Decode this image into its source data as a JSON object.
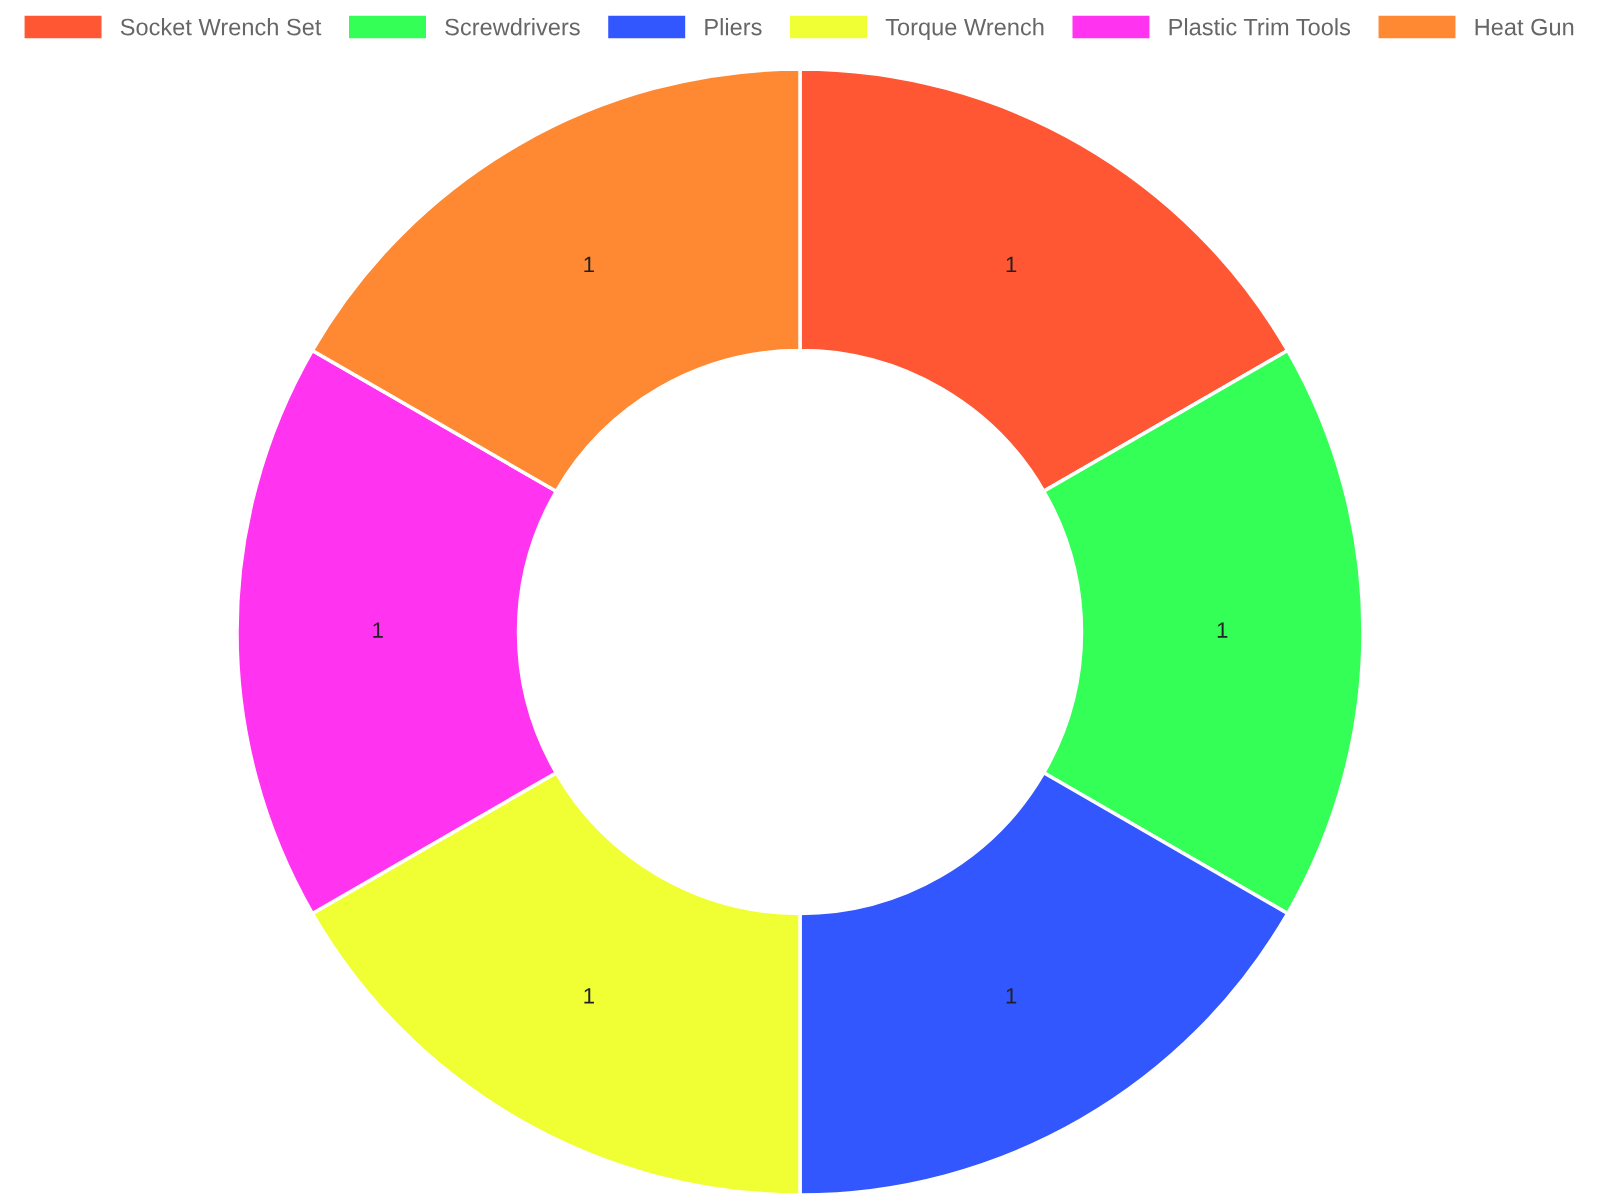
{
  "chart_data": {
    "type": "donut",
    "categories": [
      "Socket Wrench Set",
      "Screwdrivers",
      "Pliers",
      "Torque Wrench",
      "Plastic Trim Tools",
      "Heat Gun"
    ],
    "values": [
      1,
      1,
      1,
      1,
      1,
      1
    ],
    "colors": [
      "#ff5733",
      "#33ff57",
      "#3357ff",
      "#f0ff33",
      "#ff33f0",
      "#ff8833"
    ],
    "data_labels": true,
    "legend": "top"
  }
}
